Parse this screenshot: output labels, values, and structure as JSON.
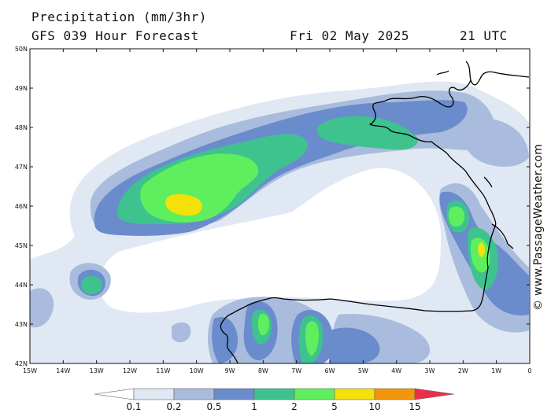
{
  "header": {
    "title": "Precipitation (mm/3hr)",
    "subtitle": "GFS 039 Hour Forecast",
    "date": "Fri 02 May 2025",
    "time": "21 UTC"
  },
  "credit": "© www.PassageWeather.com",
  "axes": {
    "lat_labels": [
      "50N",
      "49N",
      "48N",
      "47N",
      "46N",
      "45N",
      "44N",
      "43N",
      "42N"
    ],
    "lon_labels": [
      "15W",
      "14W",
      "13W",
      "12W",
      "11W",
      "10W",
      "9W",
      "8W",
      "7W",
      "6W",
      "5W",
      "4W",
      "3W",
      "2W",
      "1W",
      "0"
    ]
  },
  "colorbar": {
    "labels": [
      "0.1",
      "0.2",
      "0.5",
      "1",
      "2",
      "5",
      "10",
      "15"
    ],
    "colors": [
      "#ffffff",
      "#e0e8f4",
      "#a9bcdd",
      "#6a8ccd",
      "#3ec38e",
      "#5fef5e",
      "#f5e10a",
      "#f5960a",
      "#ea2f4a"
    ]
  },
  "palette": {
    "p01": "#e0e8f4",
    "p02": "#a9bcdd",
    "p05": "#6a8ccd",
    "p1": "#3ec38e",
    "p2": "#5fef5e",
    "p5": "#f5e10a",
    "coast": "#000000"
  }
}
